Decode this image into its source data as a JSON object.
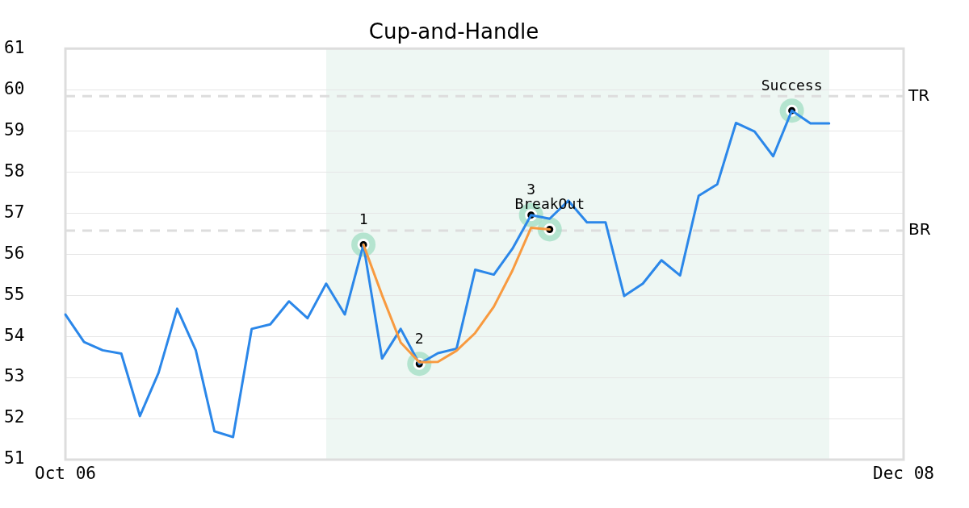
{
  "chart_data": {
    "type": "line",
    "title": "Cup-and-Handle",
    "categories": [
      "Oct 06",
      null,
      null,
      null,
      null,
      null,
      null,
      null,
      null,
      null,
      null,
      null,
      null,
      null,
      null,
      null,
      null,
      null,
      null,
      null,
      null,
      null,
      null,
      null,
      null,
      null,
      null,
      null,
      null,
      null,
      null,
      null,
      null,
      null,
      null,
      null,
      null,
      null,
      null,
      null,
      null,
      null,
      null,
      null,
      null,
      "Dec 08"
    ],
    "series": [
      {
        "color": "#2b87e9",
        "values": [
          54.53,
          53.86,
          53.66,
          53.58,
          52.06,
          53.11,
          54.67,
          53.66,
          51.69,
          51.55,
          54.18,
          54.29,
          54.85,
          54.44,
          55.28,
          54.53,
          56.23,
          53.46,
          54.18,
          53.33,
          53.59,
          53.7,
          55.62,
          55.5,
          56.13,
          56.95,
          56.86,
          57.3,
          56.77,
          56.77,
          54.98,
          55.28,
          55.85,
          55.48,
          57.42,
          57.7,
          59.19,
          58.98,
          58.38,
          59.49,
          59.18,
          59.18,
          null,
          null,
          null,
          null
        ]
      },
      {
        "type": "line",
        "color": "#f89a3f",
        "values": [
          null,
          null,
          null,
          null,
          null,
          null,
          null,
          null,
          null,
          null,
          null,
          null,
          null,
          null,
          null,
          null,
          56.23,
          55.0,
          53.85,
          53.37,
          53.38,
          53.65,
          54.08,
          54.72,
          55.6,
          56.64,
          56.6,
          null,
          null,
          null,
          null,
          null,
          null,
          null,
          null,
          null,
          null,
          null,
          null,
          null,
          null,
          null,
          null,
          null,
          null,
          null
        ]
      },
      {
        "type": "scatter",
        "color": "#000000",
        "marker": "circle",
        "values": [
          null,
          null,
          null,
          null,
          null,
          null,
          null,
          null,
          null,
          null,
          null,
          null,
          null,
          null,
          null,
          null,
          56.23,
          null,
          null,
          53.33,
          null,
          null,
          null,
          null,
          null,
          56.95,
          56.6,
          null,
          null,
          null,
          null,
          null,
          null,
          null,
          null,
          null,
          null,
          null,
          null,
          59.49,
          null,
          null,
          null,
          null,
          null,
          null
        ]
      }
    ],
    "ylim": [
      51,
      61
    ],
    "yticks": [
      51,
      52,
      53,
      54,
      55,
      56,
      57,
      58,
      59,
      60,
      61
    ],
    "grid": "y",
    "ref_lines": [
      {
        "axis": "y",
        "value": 59.84,
        "label": "TR",
        "color": "#dddddd",
        "line_style": "dashed"
      },
      {
        "axis": "y",
        "value": 56.57,
        "label": "BR",
        "color": "#dddddd",
        "line_style": "dashed"
      }
    ],
    "annotations": [
      {
        "text": "1",
        "y": 56.23
      },
      {
        "text": "2",
        "y": 53.33
      },
      {
        "text": "3",
        "y": 56.95
      },
      {
        "text": "BreakOut",
        "y": 56.6
      },
      {
        "text": "Success",
        "y": 59.49
      }
    ]
  }
}
